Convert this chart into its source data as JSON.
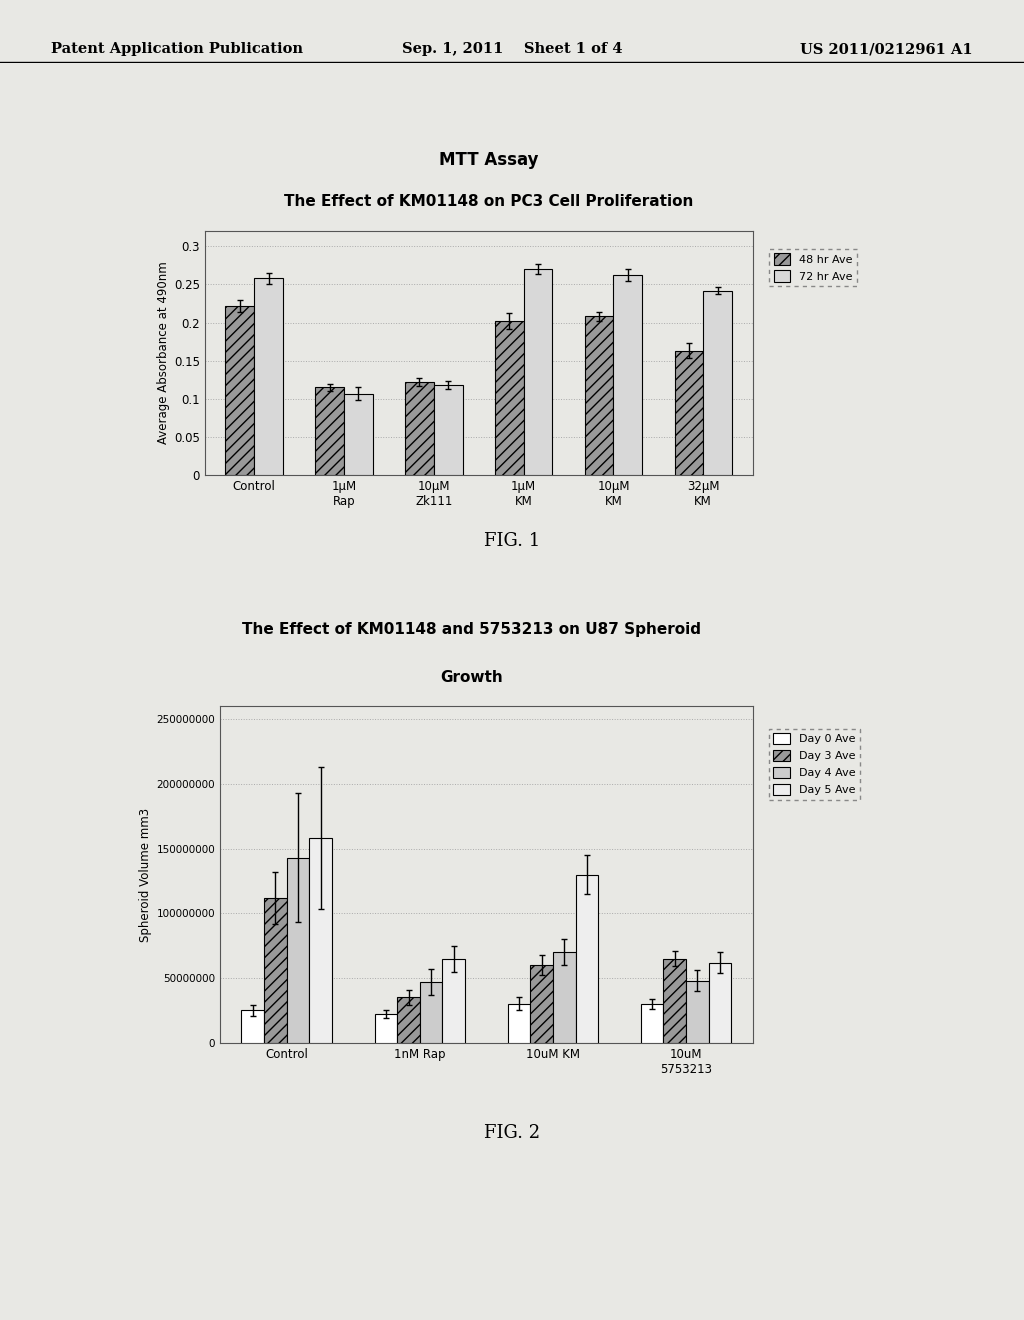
{
  "fig1": {
    "title_line1": "MTT Assay",
    "title_line2": "The Effect of KM01148 on PC3 Cell Proliferation",
    "ylabel": "Average Absorbance at 490nm",
    "categories": [
      "Control",
      "1μM\nRap",
      "10μM\nZk111",
      "1μM\nKM",
      "10μM\nKM",
      "32μM\nKM"
    ],
    "series": {
      "48 hr Ave": [
        0.222,
        0.115,
        0.122,
        0.202,
        0.208,
        0.163
      ],
      "72 hr Ave": [
        0.258,
        0.107,
        0.118,
        0.27,
        0.262,
        0.242
      ]
    },
    "errors": {
      "48 hr Ave": [
        0.008,
        0.005,
        0.005,
        0.01,
        0.006,
        0.01
      ],
      "72 hr Ave": [
        0.007,
        0.008,
        0.005,
        0.007,
        0.008,
        0.005
      ]
    },
    "ylim": [
      0,
      0.32
    ],
    "yticks": [
      0,
      0.05,
      0.1,
      0.15,
      0.2,
      0.25,
      0.3
    ],
    "ytick_labels": [
      "0",
      "0.05",
      "0.1",
      "0.15",
      "0.2",
      "0.25",
      "0.3"
    ],
    "colors": {
      "48 hr Ave": "#999999",
      "72 hr Ave": "#d8d8d8"
    },
    "hatches": {
      "48 hr Ave": "///",
      "72 hr Ave": ""
    },
    "legend_labels": [
      "48 hr Ave",
      "72 hr Ave"
    ]
  },
  "fig2": {
    "title_line1": "The Effect of KM01148 and 5753213 on U87 Spheroid",
    "title_line2": "Growth",
    "ylabel": "Spheroid Volume mm3",
    "categories": [
      "Control",
      "1nM Rap",
      "10uM KM",
      "10uM\n5753213"
    ],
    "series": {
      "Day 0 Ave": [
        25000000,
        22000000,
        30000000,
        30000000
      ],
      "Day 3 Ave": [
        112000000,
        35000000,
        60000000,
        65000000
      ],
      "Day 4 Ave": [
        143000000,
        47000000,
        70000000,
        48000000
      ],
      "Day 5 Ave": [
        158000000,
        65000000,
        130000000,
        62000000
      ]
    },
    "errors": {
      "Day 0 Ave": [
        4000000,
        3000000,
        5000000,
        4000000
      ],
      "Day 3 Ave": [
        20000000,
        6000000,
        8000000,
        6000000
      ],
      "Day 4 Ave": [
        50000000,
        10000000,
        10000000,
        8000000
      ],
      "Day 5 Ave": [
        55000000,
        10000000,
        15000000,
        8000000
      ]
    },
    "ylim": [
      0,
      260000000
    ],
    "yticks": [
      0,
      50000000,
      100000000,
      150000000,
      200000000,
      250000000
    ],
    "ytick_labels": [
      "0",
      "50000000",
      "100000000",
      "150000000",
      "200000000",
      "250000000"
    ],
    "colors": {
      "Day 0 Ave": "#ffffff",
      "Day 3 Ave": "#999999",
      "Day 4 Ave": "#cccccc",
      "Day 5 Ave": "#eeeeee"
    },
    "hatches": {
      "Day 0 Ave": "",
      "Day 3 Ave": "///",
      "Day 4 Ave": "",
      "Day 5 Ave": ""
    },
    "legend_labels": [
      "Day 0 Ave",
      "Day 3 Ave",
      "Day 4 Ave",
      "Day 5 Ave"
    ]
  },
  "page_header": {
    "left": "Patent Application Publication",
    "center": "Sep. 1, 2011    Sheet 1 of 4",
    "right": "US 2011/0212961 A1"
  },
  "fig_labels": [
    "FIG. 1",
    "FIG. 2"
  ],
  "background_color": "#e8e8e4",
  "chart_bg": "#e8e8e4",
  "border_color": "#888888"
}
